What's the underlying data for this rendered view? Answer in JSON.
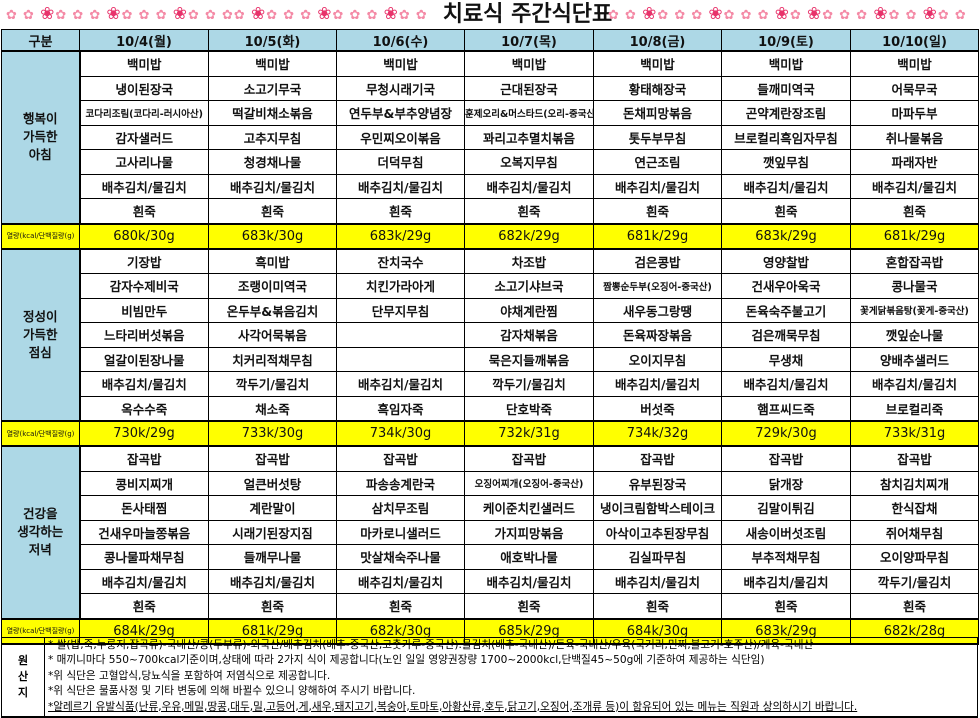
{
  "title": "치료식 주간식단표",
  "header": {
    "category_label": "구분",
    "days": [
      "10/4(월)",
      "10/5(화)",
      "10/6(수)",
      "10/7(목)",
      "10/8(금)",
      "10/9(토)",
      "10/10(일)"
    ]
  },
  "kcal_label": "열량(kcal/단백질량(g)",
  "meals": [
    {
      "label_lines": [
        "행복이",
        "가득한",
        "아침"
      ],
      "rows": [
        [
          "백미밥",
          "백미밥",
          "백미밥",
          "백미밥",
          "백미밥",
          "백미밥",
          "백미밥"
        ],
        [
          "냉이된장국",
          "소고기무국",
          "무청시래기국",
          "근대된장국",
          "황태해장국",
          "들깨미역국",
          "어묵무국"
        ],
        [
          "코다리조림(코다리-러시아산)",
          "떡갈비채소볶음",
          "연두부&부추양념장",
          "훈제오리&머스타드(오리-중국산)",
          "돈채피망볶음",
          "곤약계란장조림",
          "마파두부"
        ],
        [
          "감자샐러드",
          "고추지무침",
          "우민찌오이볶음",
          "꽈리고추멸치볶음",
          "톳두부무침",
          "브로컬리흑임자무침",
          "취나물볶음"
        ],
        [
          "고사리나물",
          "청경채나물",
          "더덕무침",
          "오복지무침",
          "연근조림",
          "깻잎무침",
          "파래자반"
        ],
        [
          "배추김치/물김치",
          "배추김치/물김치",
          "배추김치/물김치",
          "배추김치/물김치",
          "배추김치/물김치",
          "배추김치/물김치",
          "배추김치/물김치"
        ],
        [
          "흰죽",
          "흰죽",
          "흰죽",
          "흰죽",
          "흰죽",
          "흰죽",
          "흰죽"
        ]
      ],
      "kcal": [
        "680k/30g",
        "683k/30g",
        "683k/29g",
        "682k/29g",
        "681k/29g",
        "683k/29g",
        "681k/29g"
      ]
    },
    {
      "label_lines": [
        "정성이",
        "가득한",
        "점심"
      ],
      "rows": [
        [
          "기장밥",
          "흑미밥",
          "잔치국수",
          "차조밥",
          "검은콩밥",
          "영양찰밥",
          "혼합잡곡밥"
        ],
        [
          "감자수제비국",
          "조랭이미역국",
          "치킨가라아게",
          "소고기샤브국",
          "짬뽕순두부(오징어-중국산)",
          "건새우아욱국",
          "콩나물국"
        ],
        [
          "비빔만두",
          "온두부&볶음김치",
          "단무지무침",
          "야채계란찜",
          "새우동그랑땡",
          "돈육숙주불고기",
          "꽃게닭볶음탕(꽃게-중국산)"
        ],
        [
          "느타리버섯볶음",
          "사각어묵볶음",
          "",
          "감자채볶음",
          "돈육짜장볶음",
          "검은깨묵무침",
          "깻잎순나물"
        ],
        [
          "얼갈이된장나물",
          "치커리적채무침",
          "",
          "묵은지들깨볶음",
          "오이지무침",
          "무생채",
          "양배추샐러드"
        ],
        [
          "배추김치/물김치",
          "깍두기/물김치",
          "배추김치/물김치",
          "깍두기/물김치",
          "배추김치/물김치",
          "배추김치/물김치",
          "배추김치/물김치"
        ],
        [
          "옥수수죽",
          "채소죽",
          "흑임자죽",
          "단호박죽",
          "버섯죽",
          "햄프씨드죽",
          "브로컬리죽"
        ]
      ],
      "kcal": [
        "730k/29g",
        "733k/30g",
        "734k/30g",
        "732k/31g",
        "734k/32g",
        "729k/30g",
        "733k/31g"
      ]
    },
    {
      "label_lines": [
        "건강을",
        "생각하는",
        "저녁"
      ],
      "rows": [
        [
          "잡곡밥",
          "잡곡밥",
          "잡곡밥",
          "잡곡밥",
          "잡곡밥",
          "잡곡밥",
          "잡곡밥"
        ],
        [
          "콩비지찌개",
          "얼큰버섯탕",
          "파송송계란국",
          "오징어찌개(오징어-중국산)",
          "유부된장국",
          "닭개장",
          "참치김치찌개"
        ],
        [
          "돈사태찜",
          "계란말이",
          "삼치무조림",
          "케이준치킨샐러드",
          "냉이크림함박스테이크",
          "김말이튀김",
          "한식잡채"
        ],
        [
          "건새우마늘쫑볶음",
          "시래기된장지짐",
          "마카로니샐러드",
          "가지피망볶음",
          "아삭이고추된장무침",
          "새송이버섯조림",
          "쥐어채무침"
        ],
        [
          "콩나물파채무침",
          "들깨무나물",
          "맛살채숙주나물",
          "애호박나물",
          "김실파무침",
          "부추적채무침",
          "오이양파무침"
        ],
        [
          "배추김치/물김치",
          "배추김치/물김치",
          "배추김치/물김치",
          "배추김치/물김치",
          "배추김치/물김치",
          "배추김치/물김치",
          "깍두기/물김치"
        ],
        [
          "흰죽",
          "흰죽",
          "흰죽",
          "흰죽",
          "흰죽",
          "흰죽",
          "흰죽"
        ]
      ],
      "kcal": [
        "684k/29g",
        "681k/29g",
        "682k/30g",
        "685k/29g",
        "684k/30g",
        "683k/29g",
        "682k/28g"
      ]
    }
  ],
  "footer": {
    "label_chars": [
      "원",
      "산",
      "지"
    ],
    "notes": [
      "*  쌀(밥,죽,누룽지,잡곡류)-국내산/콩(두부류)-외국산/배추김치(배추-중국산,고춧가루-중국산).물김치(배추-국내산)/돈육-국내산/우육(국거리,민찌,불고기-호주산)/계육-국내산",
      "*  매끼니마다 550~700kcal기준이며,상태에 따라 2가지 식이 제공합니다(노인 일일 영양권장량 1700~2000kcl,단백질45~50g에 기준하여 제공하는 식단임)",
      "*위 식단은 고혈압식,당뇨식을 포함하여 저염식으로 제공합니다.",
      "*위 식단은 물품사정 및 기타 변동에 의해 바뀔수 있으니 양해하여 주시기 바랍니다.",
      "*알레르기 유발식품(난류,우유,메밀,땅콩,대두,밀,고등어,게,새우,돼지고기,복숭아,토마토,아황산류,호두,닭고기,오징어,조개류 등)이 함유되어 있는 메뉴는 직원과 상의하시기 바랍니다."
    ]
  },
  "colors": {
    "header_bg": "#add8e6",
    "kcal_bg": "#ffff00",
    "flower": "#f48aa6"
  }
}
